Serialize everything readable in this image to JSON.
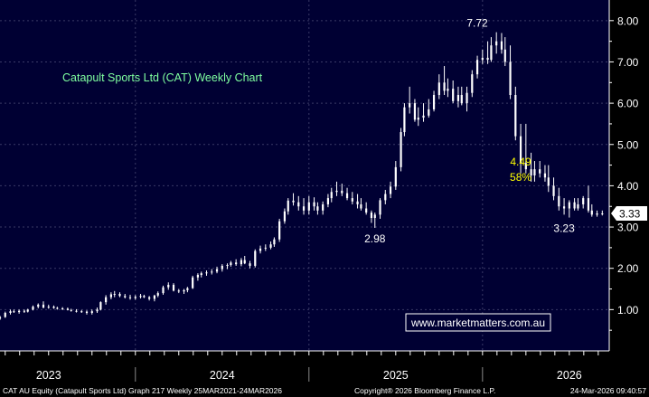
{
  "colors": {
    "plot_bg": "#000033",
    "axis_bg": "#000000",
    "grid": "#3a3a66",
    "candle": "#ffffff",
    "title": "#7fffa0",
    "annotation_yellow": "#ffff00",
    "annotation_white": "#ffffff",
    "footer_text": "#ffffff",
    "price_tag_bg": "#ffffff",
    "price_tag_text": "#000000"
  },
  "chart_data": {
    "type": "candlestick",
    "title": "Catapult Sports Ltd (CAT) Weekly Chart",
    "ylim": [
      0,
      8.5
    ],
    "y_ticks": [
      1,
      2,
      3,
      4,
      5,
      6,
      7,
      8
    ],
    "y_tick_labels": [
      "1.00",
      "2.00",
      "3.00",
      "4.00",
      "5.00",
      "6.00",
      "7.00",
      "8.00"
    ],
    "grid": true,
    "x_ticks": [
      "2023",
      "2024",
      "2025",
      "2026"
    ],
    "x_tick_positions": [
      2023.0,
      2024.0,
      2025.0,
      2026.0
    ],
    "x_range": [
      2022.72,
      2026.23
    ],
    "series": [
      {
        "t": [
          2022.72,
          2022.75,
          2022.78,
          2022.8,
          2022.83,
          2022.86,
          2022.88,
          2022.91,
          2022.94,
          2022.97,
          2023.0,
          2023.03,
          2023.05,
          2023.08,
          2023.11,
          2023.13,
          2023.16,
          2023.19,
          2023.22,
          2023.25,
          2023.28,
          2023.3,
          2023.33,
          2023.36,
          2023.38,
          2023.41,
          2023.44,
          2023.47,
          2023.5,
          2023.53,
          2023.55,
          2023.58,
          2023.61,
          2023.63,
          2023.66,
          2023.69,
          2023.72,
          2023.75,
          2023.78,
          2023.8,
          2023.83,
          2023.86,
          2023.88,
          2023.91,
          2023.94,
          2023.97,
          2024.0,
          2024.03,
          2024.05,
          2024.08,
          2024.11,
          2024.13,
          2024.16,
          2024.19,
          2024.22,
          2024.25,
          2024.28,
          2024.3,
          2024.33,
          2024.36,
          2024.38,
          2024.41,
          2024.44,
          2024.47,
          2024.5,
          2024.53,
          2024.55,
          2024.58,
          2024.61,
          2024.63,
          2024.66,
          2024.69,
          2024.72,
          2024.75,
          2024.78,
          2024.8,
          2024.83,
          2024.86,
          2024.88,
          2024.91,
          2024.94,
          2024.97,
          2025.0,
          2025.03,
          2025.05,
          2025.08,
          2025.11,
          2025.13,
          2025.16,
          2025.19,
          2025.22,
          2025.25,
          2025.28,
          2025.3,
          2025.33,
          2025.36,
          2025.38,
          2025.41,
          2025.44,
          2025.47,
          2025.5,
          2025.53,
          2025.55,
          2025.58,
          2025.61,
          2025.63,
          2025.66,
          2025.69,
          2025.72,
          2025.75,
          2025.78,
          2025.8,
          2025.83,
          2025.86,
          2025.88,
          2025.91,
          2025.94,
          2025.97,
          2026.0,
          2026.03,
          2026.05,
          2026.08,
          2026.11,
          2026.13,
          2026.16,
          2026.19
        ],
        "open": [
          0.78,
          0.82,
          0.92,
          0.96,
          0.94,
          0.97,
          0.95,
          1.0,
          1.07,
          1.12,
          1.05,
          1.07,
          1.04,
          1.03,
          1.02,
          0.99,
          0.97,
          0.96,
          0.95,
          0.92,
          0.96,
          1.0,
          1.18,
          1.3,
          1.37,
          1.38,
          1.33,
          1.3,
          1.28,
          1.31,
          1.33,
          1.3,
          1.26,
          1.34,
          1.4,
          1.54,
          1.6,
          1.46,
          1.44,
          1.47,
          1.52,
          1.78,
          1.84,
          1.88,
          1.9,
          1.92,
          1.98,
          2.06,
          2.08,
          2.14,
          2.1,
          2.2,
          2.12,
          2.06,
          2.42,
          2.48,
          2.5,
          2.58,
          2.7,
          3.14,
          3.38,
          3.64,
          3.6,
          3.5,
          3.4,
          3.6,
          3.5,
          3.4,
          3.55,
          3.7,
          3.85,
          3.88,
          3.82,
          3.7,
          3.62,
          3.55,
          3.45,
          3.35,
          3.22,
          3.3,
          3.65,
          3.8,
          3.98,
          4.45,
          5.3,
          5.9,
          6.0,
          5.6,
          5.65,
          5.7,
          5.85,
          6.2,
          6.5,
          6.3,
          6.35,
          6.05,
          6.2,
          6.0,
          6.25,
          6.7,
          7.05,
          7.1,
          7.05,
          7.4,
          7.5,
          7.3,
          7.0,
          6.2,
          5.2,
          4.55,
          4.4,
          4.25,
          4.4,
          4.3,
          4.2,
          4.0,
          3.75,
          3.5,
          3.45,
          3.6,
          3.45,
          3.55,
          3.7,
          3.4,
          3.3,
          3.33
        ],
        "high": [
          0.85,
          0.95,
          1.0,
          1.0,
          1.0,
          1.0,
          1.02,
          1.1,
          1.15,
          1.2,
          1.12,
          1.1,
          1.07,
          1.06,
          1.05,
          1.02,
          1.01,
          0.99,
          0.98,
          1.0,
          1.05,
          1.2,
          1.35,
          1.42,
          1.45,
          1.42,
          1.38,
          1.36,
          1.35,
          1.38,
          1.36,
          1.33,
          1.36,
          1.44,
          1.58,
          1.66,
          1.64,
          1.5,
          1.5,
          1.55,
          1.82,
          1.88,
          1.92,
          1.95,
          1.98,
          2.04,
          2.1,
          2.12,
          2.18,
          2.22,
          2.25,
          2.3,
          2.18,
          2.46,
          2.55,
          2.58,
          2.65,
          2.75,
          3.2,
          3.45,
          3.7,
          3.82,
          3.75,
          3.7,
          3.75,
          3.72,
          3.6,
          3.62,
          3.8,
          3.95,
          4.1,
          4.05,
          3.95,
          3.85,
          3.8,
          3.7,
          3.6,
          3.4,
          3.35,
          3.7,
          3.9,
          4.1,
          4.6,
          5.4,
          6.0,
          6.4,
          6.1,
          5.9,
          6.0,
          6.1,
          6.3,
          6.7,
          6.9,
          6.6,
          6.55,
          6.4,
          6.4,
          6.4,
          6.8,
          7.15,
          7.3,
          7.5,
          7.6,
          7.72,
          7.7,
          7.6,
          7.4,
          6.4,
          5.5,
          5.5,
          4.8,
          4.6,
          4.6,
          4.5,
          4.5,
          4.2,
          3.95,
          3.7,
          3.65,
          3.7,
          3.7,
          3.75,
          4.0,
          3.55,
          3.4,
          3.4
        ],
        "low": [
          0.75,
          0.8,
          0.88,
          0.92,
          0.9,
          0.92,
          0.93,
          0.98,
          1.03,
          1.03,
          1.02,
          1.02,
          1.0,
          0.99,
          0.98,
          0.95,
          0.93,
          0.92,
          0.88,
          0.88,
          0.92,
          0.98,
          1.12,
          1.25,
          1.3,
          1.3,
          1.27,
          1.24,
          1.24,
          1.27,
          1.28,
          1.22,
          1.2,
          1.3,
          1.36,
          1.48,
          1.44,
          1.4,
          1.38,
          1.42,
          1.5,
          1.7,
          1.78,
          1.82,
          1.85,
          1.88,
          1.92,
          1.98,
          2.04,
          2.06,
          2.05,
          2.1,
          2.0,
          2.02,
          2.36,
          2.42,
          2.46,
          2.52,
          2.64,
          3.08,
          3.3,
          3.52,
          3.4,
          3.3,
          3.3,
          3.4,
          3.3,
          3.3,
          3.48,
          3.6,
          3.75,
          3.75,
          3.65,
          3.55,
          3.45,
          3.4,
          3.3,
          3.1,
          2.98,
          3.2,
          3.55,
          3.7,
          3.9,
          4.35,
          5.2,
          5.75,
          5.55,
          5.45,
          5.55,
          5.65,
          5.8,
          6.1,
          6.2,
          6.15,
          6.0,
          5.9,
          5.95,
          5.8,
          6.15,
          6.6,
          6.95,
          6.95,
          7.0,
          7.2,
          7.2,
          6.9,
          6.1,
          5.1,
          4.3,
          4.3,
          4.1,
          4.1,
          4.2,
          4.1,
          3.85,
          3.65,
          3.4,
          3.3,
          3.23,
          3.4,
          3.4,
          3.45,
          3.35,
          3.25,
          3.25,
          3.28
        ],
        "close": [
          0.82,
          0.92,
          0.96,
          0.94,
          0.97,
          0.95,
          1.0,
          1.07,
          1.12,
          1.05,
          1.07,
          1.04,
          1.03,
          1.02,
          0.99,
          0.97,
          0.96,
          0.95,
          0.92,
          0.96,
          1.0,
          1.18,
          1.3,
          1.37,
          1.38,
          1.33,
          1.3,
          1.28,
          1.31,
          1.33,
          1.3,
          1.26,
          1.34,
          1.4,
          1.54,
          1.6,
          1.46,
          1.44,
          1.47,
          1.52,
          1.78,
          1.84,
          1.88,
          1.9,
          1.92,
          1.98,
          2.06,
          2.08,
          2.14,
          2.1,
          2.2,
          2.12,
          2.06,
          2.42,
          2.48,
          2.5,
          2.58,
          2.7,
          3.14,
          3.38,
          3.64,
          3.6,
          3.5,
          3.4,
          3.6,
          3.5,
          3.4,
          3.55,
          3.7,
          3.85,
          3.88,
          3.82,
          3.7,
          3.62,
          3.55,
          3.45,
          3.35,
          3.22,
          3.3,
          3.65,
          3.8,
          3.98,
          4.45,
          5.3,
          5.9,
          6.0,
          5.6,
          5.65,
          5.7,
          5.85,
          6.2,
          6.5,
          6.3,
          6.35,
          6.05,
          6.2,
          6.0,
          6.25,
          6.7,
          7.05,
          7.1,
          7.05,
          7.4,
          7.5,
          7.3,
          7.0,
          6.2,
          5.2,
          4.55,
          4.4,
          4.25,
          4.4,
          4.3,
          4.2,
          4.0,
          3.75,
          3.5,
          3.45,
          3.6,
          3.45,
          3.55,
          3.7,
          3.4,
          3.3,
          3.33,
          3.33
        ]
      }
    ],
    "last_price_label": "3.33",
    "last_price_value": 3.33,
    "annotations": [
      {
        "text": "7.72",
        "x": 2025.47,
        "y": 7.72,
        "color": "white",
        "anchor": "above"
      },
      {
        "text": "2.98",
        "x": 2024.88,
        "y": 2.98,
        "color": "white",
        "anchor": "below"
      },
      {
        "text": "3.23",
        "x": 2025.97,
        "y": 3.23,
        "color": "white",
        "anchor": "below"
      },
      {
        "text": "4.49",
        "x": 2025.72,
        "y": 4.49,
        "color": "yellow",
        "anchor": "upper"
      },
      {
        "text": "58%",
        "x": 2025.72,
        "y": 4.49,
        "color": "yellow",
        "anchor": "lower"
      }
    ]
  },
  "watermark": "www.marketmatters.com.au",
  "footer": {
    "left": "CAT AU Equity (Catapult Sports Ltd) Graph 217 Weekly 25MAR2021-24MAR2026",
    "center": "Copyright® 2026 Bloomberg Finance L.P.",
    "right": "24-Mar-2026 09:40:57"
  }
}
